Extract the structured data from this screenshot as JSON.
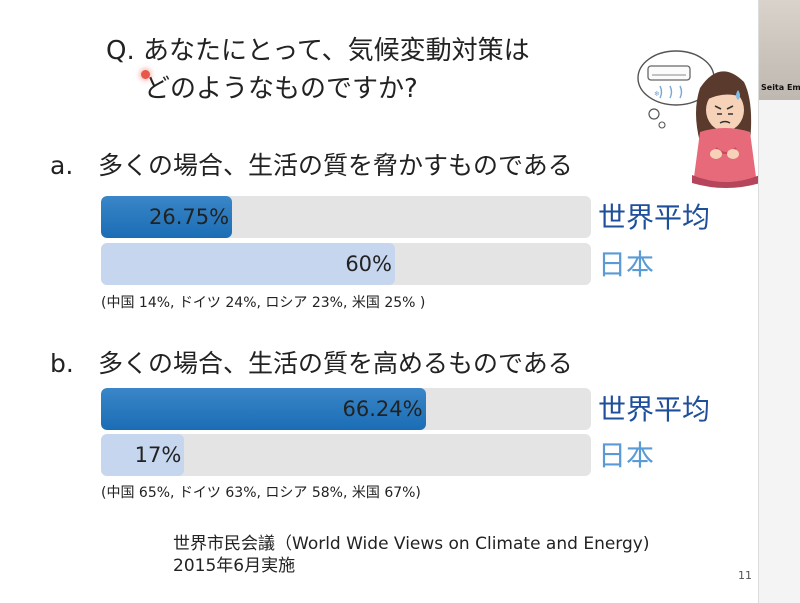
{
  "slide": {
    "question_line1": "Q. あなたにとって、気候変動対策は",
    "question_line2": "どのようなものですか?",
    "section_a": {
      "letter": "a.",
      "title": "多くの場合、生活の質を脅かすものである",
      "world_value": "26.75%",
      "world_fraction": 0.2675,
      "japan_value": "60%",
      "japan_fraction": 0.6,
      "note": "(中国 14%, ドイツ 24%, ロシア 23%, 米国 25% )"
    },
    "section_b": {
      "letter": "b.",
      "title": "多くの場合、生活の質を高めるものである",
      "world_value": "66.24%",
      "world_fraction": 0.6624,
      "japan_value": "17%",
      "japan_fraction": 0.17,
      "note": "(中国 65%, ドイツ 63%, ロシア 58%, 米国 67%)"
    },
    "world_label": "世界平均",
    "japan_label": "日本",
    "source_line1": "世界市民会議（World Wide Views on Climate and Energy)",
    "source_line2": "2015年6月実施",
    "page_number": "11",
    "illustration_icon": "worried-woman-air-conditioner-illustration"
  },
  "side_panel": {
    "participant_name": "Seita Emo"
  },
  "colors": {
    "world_bar": "#1a6db5",
    "japan_bar": "#c6d6ef",
    "track": "#e4e4e4",
    "world_label": "#1f4e9a",
    "japan_label": "#5b9bd5",
    "pointer": "#e8574a"
  }
}
